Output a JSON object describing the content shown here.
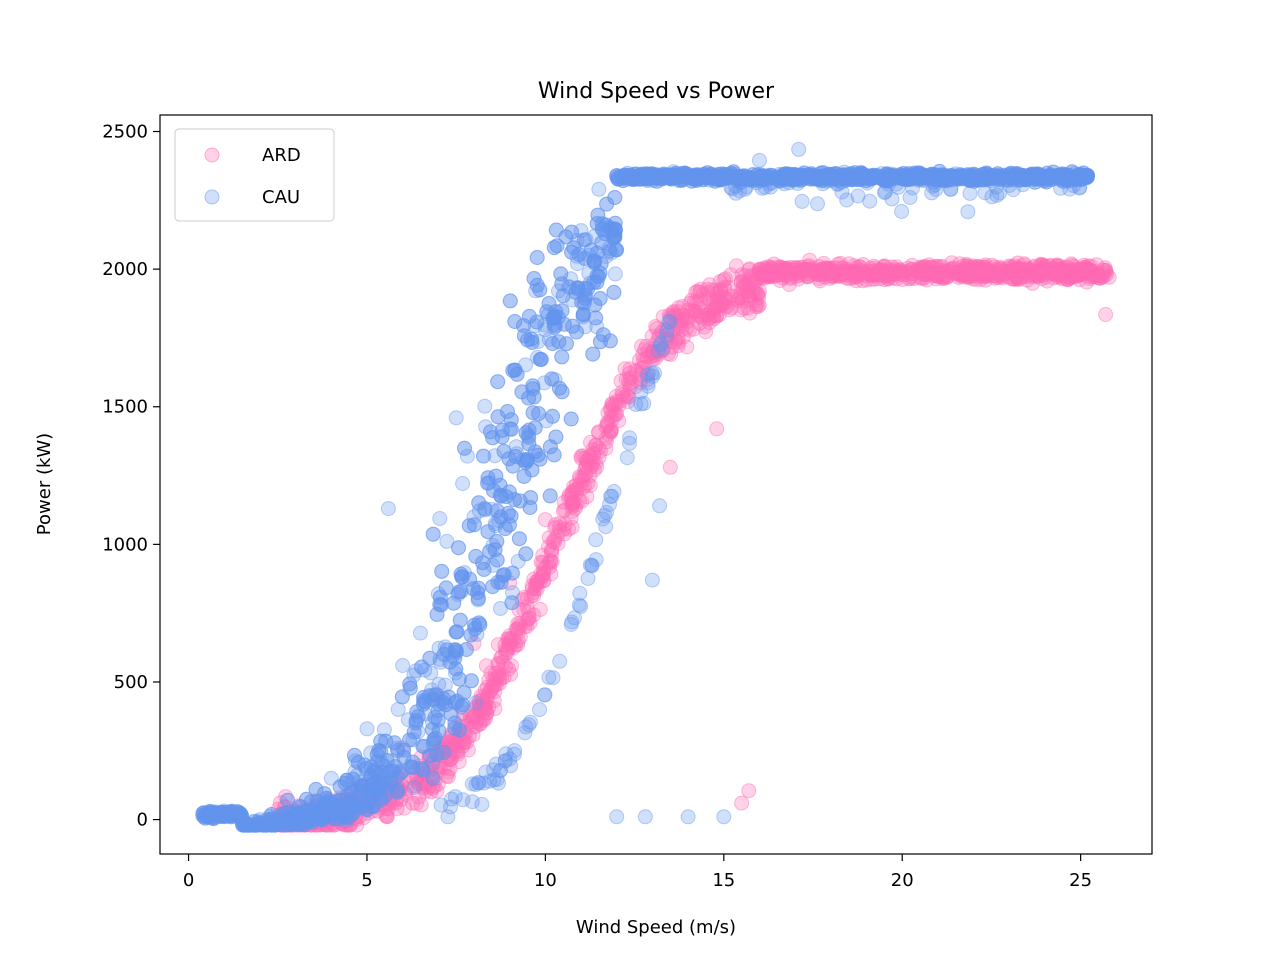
{
  "chart_data": {
    "type": "scatter",
    "title": "Wind Speed vs Power",
    "xlabel": "Wind Speed (m/s)",
    "ylabel": "Power (kW)",
    "xlim": [
      -0.8,
      27
    ],
    "ylim": [
      -125,
      2560
    ],
    "xticks": [
      0,
      5,
      10,
      15,
      20,
      25
    ],
    "yticks": [
      0,
      500,
      1000,
      1500,
      2000,
      2500
    ],
    "grid": false,
    "legend_position": "top-left",
    "series": [
      {
        "name": "ARD",
        "color": "#ff69b4",
        "description_points": [
          [
            3.0,
            0
          ],
          [
            4.0,
            40
          ],
          [
            5.0,
            120
          ],
          [
            6.0,
            260
          ],
          [
            7.0,
            440
          ],
          [
            8.0,
            640
          ],
          [
            9.0,
            860
          ],
          [
            10.0,
            1090
          ],
          [
            11.0,
            1320
          ],
          [
            12.0,
            1520
          ],
          [
            13.0,
            1700
          ],
          [
            14.0,
            1850
          ],
          [
            15.0,
            1960
          ],
          [
            16.0,
            2000
          ],
          [
            18.0,
            1995
          ],
          [
            20.0,
            1990
          ],
          [
            22.0,
            1995
          ],
          [
            24.0,
            1990
          ],
          [
            25.5,
            1975
          ],
          [
            25.7,
            1835
          ],
          [
            15.5,
            60
          ],
          [
            15.7,
            105
          ],
          [
            13.5,
            1280
          ],
          [
            14.8,
            1420
          ]
        ]
      },
      {
        "name": "CAU",
        "color": "#6495ed",
        "description_points": [
          [
            0.5,
            20
          ],
          [
            1.0,
            10
          ],
          [
            2.0,
            0
          ],
          [
            3.0,
            30
          ],
          [
            4.0,
            150
          ],
          [
            5.0,
            330
          ],
          [
            6.0,
            560
          ],
          [
            7.0,
            820
          ],
          [
            8.0,
            1100
          ],
          [
            9.0,
            1420
          ],
          [
            10.0,
            1780
          ],
          [
            11.0,
            2140
          ],
          [
            11.5,
            2290
          ],
          [
            12.0,
            2340
          ],
          [
            14.0,
            2345
          ],
          [
            16.0,
            2345
          ],
          [
            18.0,
            2340
          ],
          [
            20.0,
            2335
          ],
          [
            22.0,
            2335
          ],
          [
            24.0,
            2330
          ],
          [
            25.0,
            2325
          ],
          [
            17.1,
            2435
          ],
          [
            16.0,
            2395
          ],
          [
            5.6,
            1130
          ],
          [
            7.5,
            1460
          ],
          [
            13.0,
            870
          ],
          [
            13.2,
            1140
          ],
          [
            12.0,
            10
          ],
          [
            12.8,
            10
          ],
          [
            14.0,
            10
          ],
          [
            15.0,
            10
          ]
        ]
      }
    ]
  }
}
